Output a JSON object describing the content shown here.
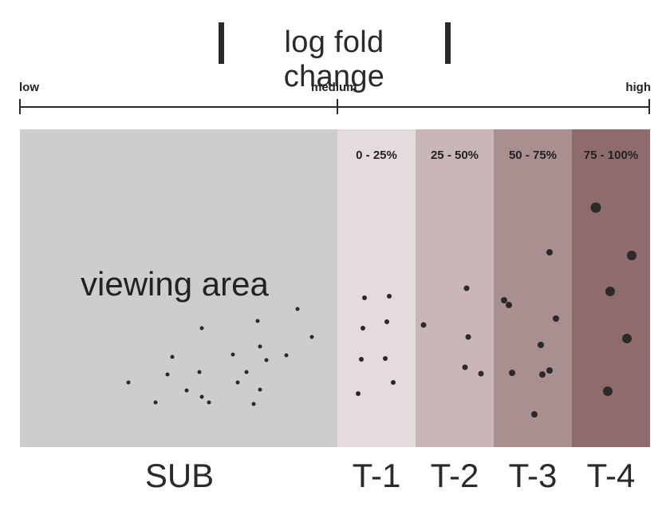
{
  "title": "log fold change",
  "scale": {
    "low": "low",
    "medium": "medium",
    "high": "high"
  },
  "sub_panel": {
    "label": "viewing area",
    "name": "SUB"
  },
  "tiers": [
    {
      "name": "T-1",
      "range": "0 - 25%"
    },
    {
      "name": "T-2",
      "range": "25 - 50%"
    },
    {
      "name": "T-3",
      "range": "50 - 75%"
    },
    {
      "name": "T-4",
      "range": "75 - 100%"
    }
  ],
  "colors": {
    "sub": "#cdcdcd",
    "t1": "#e4dcdc",
    "t2": "#c9b6b6",
    "t3": "#a98f8f",
    "t4": "#8e6c6c",
    "dots": "#2a2a2a"
  }
}
